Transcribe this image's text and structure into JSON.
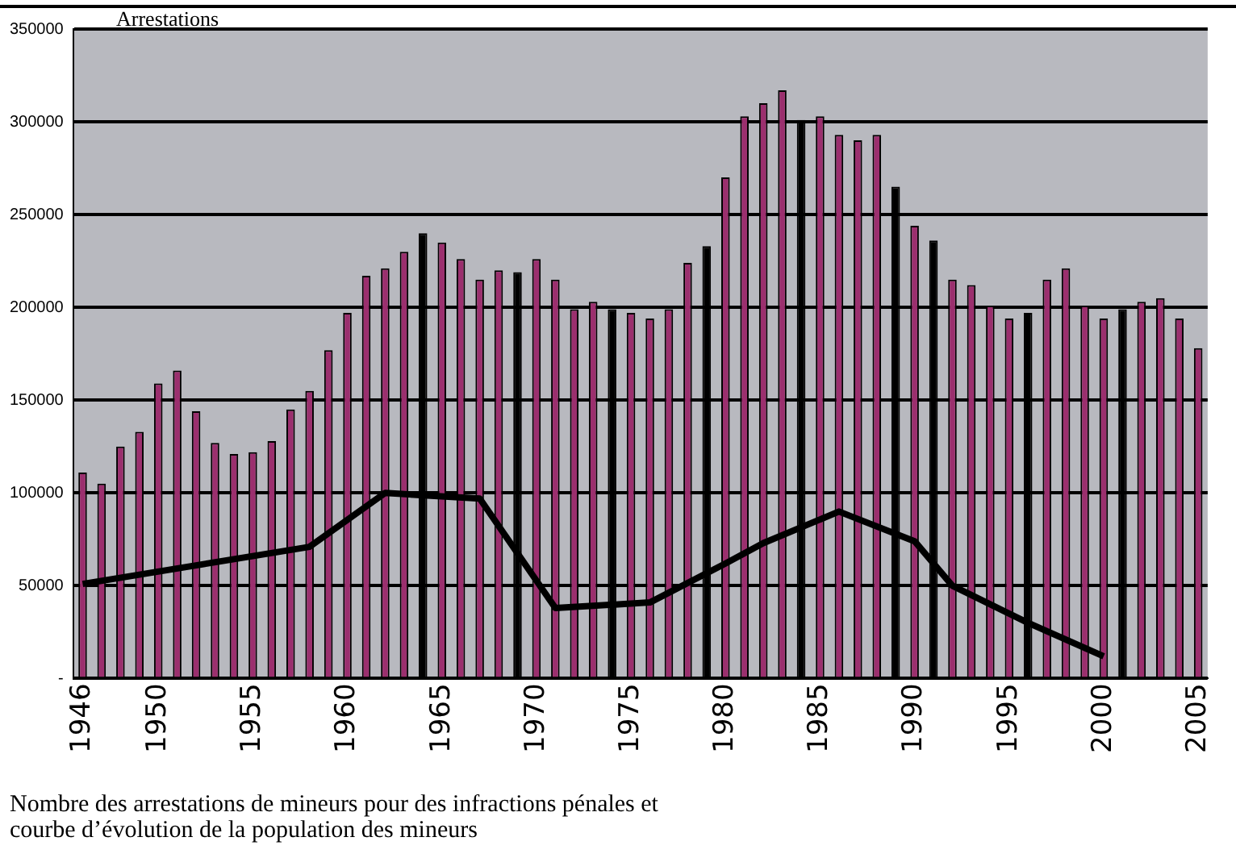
{
  "chart_data": {
    "type": "bar",
    "ylabel": "Arrestations",
    "annotations": [
      "Nombre des arrestations de mineurs pour des infractions pénales et courbe d’évolution de la population des mineurs"
    ],
    "categories": [
      "1946",
      null,
      null,
      null,
      "1950",
      null,
      null,
      null,
      null,
      "1955",
      null,
      null,
      null,
      null,
      "1960",
      null,
      null,
      null,
      null,
      "1965",
      null,
      null,
      null,
      null,
      "1970",
      null,
      null,
      null,
      null,
      "1975",
      null,
      null,
      null,
      null,
      "1980",
      null,
      null,
      null,
      null,
      "1985",
      null,
      null,
      null,
      null,
      "1990",
      null,
      null,
      null,
      null,
      "1995",
      null,
      null,
      null,
      null,
      "2000",
      null,
      null,
      null,
      null,
      "2005"
    ],
    "series": [
      {
        "values": [
          111000,
          105000,
          125000,
          133000,
          159000,
          166000,
          144000,
          127000,
          121000,
          122000,
          128000,
          145000,
          155000,
          177000,
          197000,
          217000,
          221000,
          230000,
          240000,
          235000,
          226000,
          215000,
          220000,
          219000,
          226000,
          215000,
          199000,
          203000,
          199000,
          197000,
          194000,
          199000,
          224000,
          233000,
          270000,
          303000,
          310000,
          317000,
          301000,
          303000,
          293000,
          290000,
          293000,
          265000,
          244000,
          236000,
          215000,
          212000,
          201000,
          194000,
          197000,
          215000,
          221000,
          201000,
          194000,
          199000,
          203000,
          205000,
          194000,
          178000
        ],
        "colors": [
          "#9b2f6e",
          "#9b2f6e",
          "#9b2f6e",
          "#9b2f6e",
          "#9b2f6e",
          "#9b2f6e",
          "#9b2f6e",
          "#9b2f6e",
          "#9b2f6e",
          "#9b2f6e",
          "#9b2f6e",
          "#9b2f6e",
          "#9b2f6e",
          "#9b2f6e",
          "#9b2f6e",
          "#9b2f6e",
          "#9b2f6e",
          "#9b2f6e",
          "#000000",
          "#9b2f6e",
          "#9b2f6e",
          "#9b2f6e",
          "#9b2f6e",
          "#000000",
          "#9b2f6e",
          "#9b2f6e",
          "#9b2f6e",
          "#9b2f6e",
          "#000000",
          "#9b2f6e",
          "#9b2f6e",
          "#9b2f6e",
          "#9b2f6e",
          "#000000",
          "#9b2f6e",
          "#9b2f6e",
          "#9b2f6e",
          "#9b2f6e",
          "#000000",
          "#9b2f6e",
          "#9b2f6e",
          "#9b2f6e",
          "#9b2f6e",
          "#000000",
          "#9b2f6e",
          "#000000",
          "#9b2f6e",
          "#9b2f6e",
          "#9b2f6e",
          "#9b2f6e",
          "#000000",
          "#9b2f6e",
          "#9b2f6e",
          "#9b2f6e",
          "#9b2f6e",
          "#000000",
          "#9b2f6e",
          "#9b2f6e",
          "#9b2f6e",
          "#9b2f6e"
        ]
      },
      {
        "type": "line",
        "color": "#000000",
        "values": [
          51000,
          null,
          null,
          null,
          null,
          null,
          null,
          null,
          null,
          null,
          null,
          null,
          71000,
          null,
          null,
          null,
          100000,
          null,
          null,
          null,
          null,
          97000,
          null,
          null,
          null,
          38000,
          null,
          null,
          null,
          null,
          41000,
          null,
          null,
          null,
          62000,
          null,
          73000,
          null,
          null,
          null,
          90000,
          null,
          null,
          null,
          74000,
          null,
          50000,
          null,
          null,
          null,
          30000,
          null,
          null,
          null,
          12000,
          null,
          null,
          null,
          null,
          null
        ]
      }
    ],
    "ylim": [
      0,
      350000
    ],
    "yticks": [
      {
        "value": 0,
        "label": "-"
      },
      50000,
      100000,
      150000,
      200000,
      250000,
      300000,
      350000
    ],
    "grid": "y",
    "legend": false
  }
}
